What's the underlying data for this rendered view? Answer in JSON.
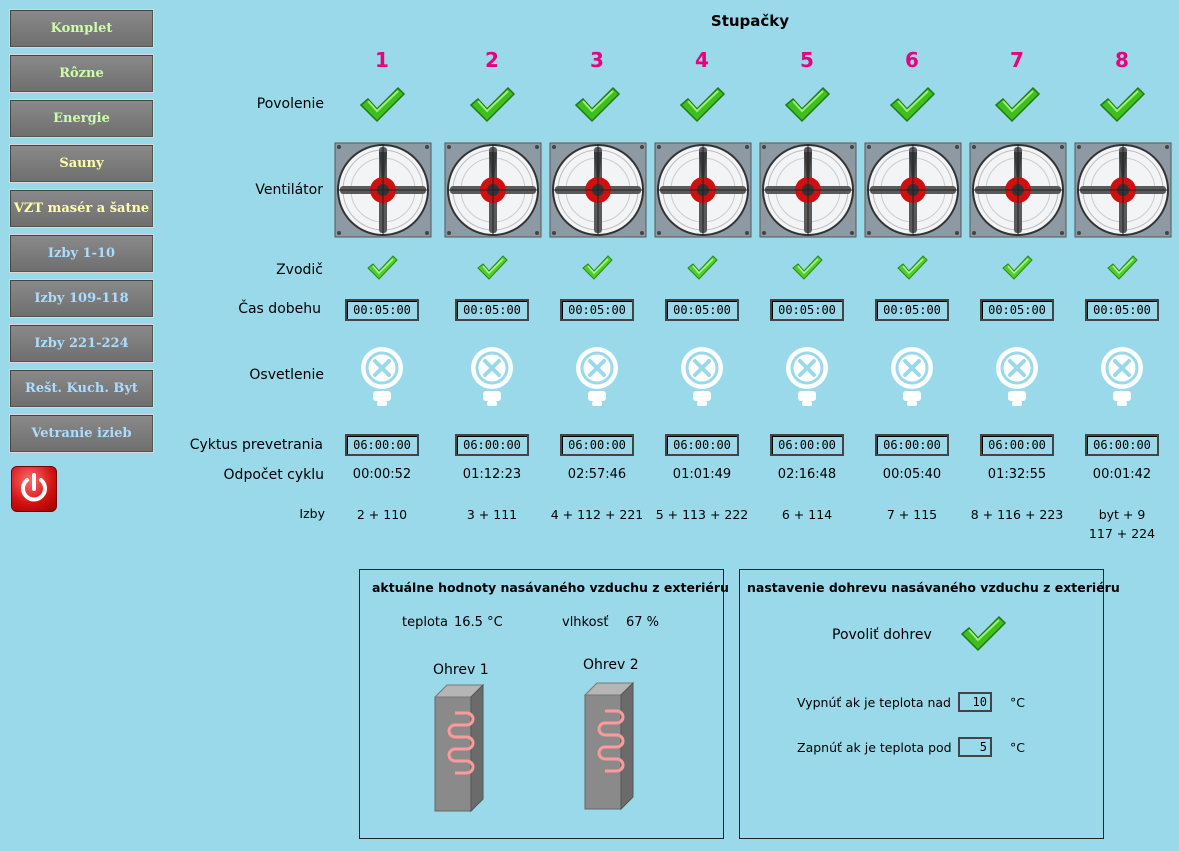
{
  "nav": [
    {
      "label": "Komplet",
      "color": "#ccffaa"
    },
    {
      "label": "Rôzne",
      "color": "#ccffaa"
    },
    {
      "label": "Energie",
      "color": "#ccffaa"
    },
    {
      "label": "Sauny",
      "color": "#ffffaa"
    },
    {
      "label": "VZT masér a šatne",
      "color": "#ffffaa"
    },
    {
      "label": "Izby 1-10",
      "color": "#aaddff"
    },
    {
      "label": "Izby 109-118",
      "color": "#aaddff"
    },
    {
      "label": "Izby 221-224",
      "color": "#aaddff"
    },
    {
      "label": "Rešt. Kuch. Byt",
      "color": "#aaddff"
    },
    {
      "label": "Vetranie izieb",
      "color": "#aaddff"
    }
  ],
  "power_icon": "power-icon",
  "title": "Stupačky",
  "row_labels": {
    "enable": "Povolenie",
    "fan": "Ventilátor",
    "zvodic": "Zvodič",
    "runout": "Čas dobehu",
    "light": "Osvetlenie",
    "cycle": "Cyktus prevetrania",
    "countdown": "Odpočet cyklu",
    "rooms": "Izby"
  },
  "columns": [
    {
      "num": "1",
      "runout": "00:05:00",
      "cycle": "06:00:00",
      "countdown": "00:00:52",
      "rooms": "2 + 110",
      "rooms2": ""
    },
    {
      "num": "2",
      "runout": "00:05:00",
      "cycle": "06:00:00",
      "countdown": "01:12:23",
      "rooms": "3 + 111",
      "rooms2": ""
    },
    {
      "num": "3",
      "runout": "00:05:00",
      "cycle": "06:00:00",
      "countdown": "02:57:46",
      "rooms": "4 + 112 + 221",
      "rooms2": ""
    },
    {
      "num": "4",
      "runout": "00:05:00",
      "cycle": "06:00:00",
      "countdown": "01:01:49",
      "rooms": "5 + 113 + 222",
      "rooms2": ""
    },
    {
      "num": "5",
      "runout": "00:05:00",
      "cycle": "06:00:00",
      "countdown": "02:16:48",
      "rooms": "6 + 114",
      "rooms2": ""
    },
    {
      "num": "6",
      "runout": "00:05:00",
      "cycle": "06:00:00",
      "countdown": "00:05:40",
      "rooms": "7 + 115",
      "rooms2": ""
    },
    {
      "num": "7",
      "runout": "00:05:00",
      "cycle": "06:00:00",
      "countdown": "01:32:55",
      "rooms": "8 + 116 + 223",
      "rooms2": ""
    },
    {
      "num": "8",
      "runout": "00:05:00",
      "cycle": "06:00:00",
      "countdown": "00:01:42",
      "rooms": "byt + 9",
      "rooms2": "117 + 224"
    }
  ],
  "exterior": {
    "title": "aktuálne hodnoty nasávaného vzduchu z exteriéru",
    "temp_label": "teplota",
    "temp_value": "16.5 °C",
    "hum_label": "vlhkosť",
    "hum_value": "67 %",
    "heater1": "Ohrev 1",
    "heater2": "Ohrev 2"
  },
  "preheat": {
    "title": "nastavenie dohrevu nasávaného vzduchu z exteriéru",
    "enable_label": "Povoliť dohrev",
    "off_label": "Vypnúť ak je teplota nad",
    "off_value": "10",
    "on_label": "Zapnúť ak je teplota pod",
    "on_value": "5",
    "unit": "°C"
  },
  "colors": {
    "background": "#99d9ea",
    "column_number": "#e6007e",
    "check": "#3fbf1f"
  }
}
